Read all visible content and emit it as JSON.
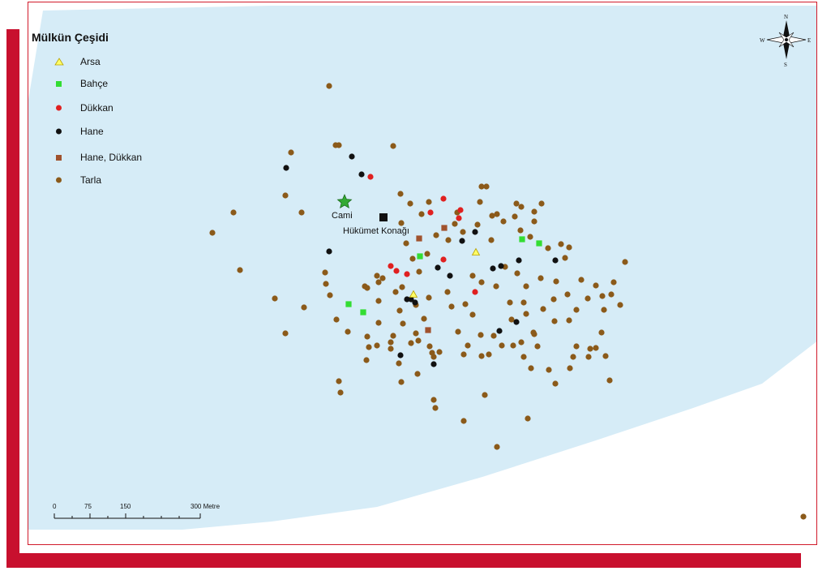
{
  "legend": {
    "title": "Mülkün Çeşidi",
    "items": [
      {
        "label": "Arsa",
        "symbol": "triangle",
        "color": "#ffff66"
      },
      {
        "label": "Bahçe",
        "symbol": "square",
        "color": "#33dd33"
      },
      {
        "label": "Dükkan",
        "symbol": "circle",
        "color": "#e02020"
      },
      {
        "label": "Hane",
        "symbol": "circle",
        "color": "#111111"
      },
      {
        "label": "Hane, Dükkan",
        "symbol": "square",
        "color": "#a0522d"
      },
      {
        "label": "Tarla",
        "symbol": "circle",
        "color": "#8b5a1a"
      }
    ]
  },
  "labels": {
    "mosque": "Cami",
    "government_house": "Hükümet Konağı"
  },
  "scale_bar": {
    "ticks": [
      "0",
      "75",
      "150",
      "300 Metre"
    ]
  },
  "compass": {
    "n": "N",
    "s": "S",
    "e": "E",
    "w": "W"
  },
  "colors": {
    "water": "#d6ecf7",
    "frame": "#c8102e",
    "mosque_star": "#33aa33",
    "government_square": "#111111"
  }
}
